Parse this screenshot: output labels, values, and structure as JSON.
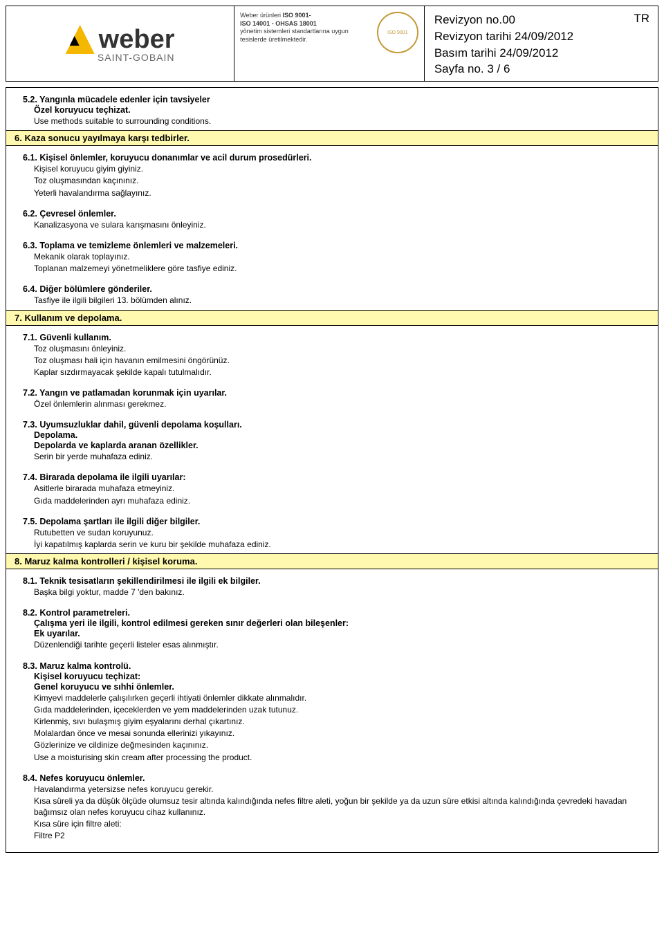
{
  "header": {
    "brand": "weber",
    "subbrand": "SAINT-GOBAIN",
    "iso_line1": "Weber ürünleri ",
    "iso_bold1": "ISO 9001-",
    "iso_bold2": "ISO 14001 - OHSAS 18001",
    "iso_line3": "yönetim sistemleri standartlarına uygun tesislerde üretilmektedir.",
    "badge_text": "ISO 9001",
    "tr": "TR",
    "rev_no": "Revizyon no.00",
    "rev_date": "Revizyon tarihi 24/09/2012",
    "print_date": "Basım tarihi 24/09/2012",
    "page": "Sayfa no. 3 / 6"
  },
  "s52": {
    "title": "5.2. Yangınla mücadele edenler için tavsiyeler",
    "sub": "Özel koruyucu teçhizat.",
    "l1": "Use methods suitable to surrounding conditions."
  },
  "h6": "6. Kaza sonucu yayılmaya karşı tedbirler.",
  "s61": {
    "title": "6.1. Kişisel önlemler, koruyucu donanımlar ve acil durum prosedürleri.",
    "l1": "Kişisel koruyucu giyim giyiniz.",
    "l2": "Toz oluşmasından kaçınınız.",
    "l3": "Yeterli havalandırma sağlayınız."
  },
  "s62": {
    "title": "6.2. Çevresel önlemler.",
    "l1": "Kanalizasyona ve sulara karışmasını önleyiniz."
  },
  "s63": {
    "title": "6.3. Toplama ve temizleme önlemleri ve malzemeleri.",
    "l1": "Mekanik olarak toplayınız.",
    "l2": "Toplanan malzemeyi yönetmeliklere göre tasfiye ediniz."
  },
  "s64": {
    "title": "6.4. Diğer bölümlere gönderiler.",
    "l1": "Tasfiye ile ilgili bilgileri 13. bölümden alınız."
  },
  "h7": "7. Kullanım ve depolama.",
  "s71": {
    "title": "7.1. Güvenli kullanım.",
    "l1": "Toz oluşmasını önleyiniz.",
    "l2": "Toz oluşması hali için havanın emilmesini öngörünüz.",
    "l3": "Kaplar sızdırmayacak şekilde kapalı tutulmalıdır."
  },
  "s72": {
    "title": "7.2. Yangın ve patlamadan korunmak için uyarılar.",
    "l1": "Özel önlemlerin alınması gerekmez."
  },
  "s73": {
    "title": "7.3. Uyumsuzluklar dahil, güvenli depolama koşulları.",
    "sub1": "Depolama.",
    "sub2": "Depolarda ve kaplarda aranan özellikler.",
    "l1": "Serin bir yerde muhafaza ediniz."
  },
  "s74": {
    "title": "7.4. Birarada depolama ile ilgili uyarılar:",
    "l1": "Asitlerle birarada muhafaza etmeyiniz.",
    "l2": "Gıda maddelerinden ayrı muhafaza ediniz."
  },
  "s75": {
    "title": "7.5. Depolama şartları ile ilgili diğer bilgiler.",
    "l1": "Rutubetten ve sudan koruyunuz.",
    "l2": "İyi kapatılmış kaplarda serin ve kuru bir şekilde muhafaza ediniz."
  },
  "h8": "8. Maruz kalma kontrolleri / kişisel koruma.",
  "s81": {
    "title": "8.1. Teknik tesisatların şekillendirilmesi ile ilgili ek bilgiler.",
    "l1": "Başka bilgi yoktur, madde 7 'den bakınız."
  },
  "s82": {
    "title": "8.2. Kontrol parametreleri.",
    "sub1": "Çalışma yeri ile ilgili, kontrol edilmesi gereken sınır değerleri olan bileşenler:",
    "sub2": "Ek uyarılar.",
    "l1": "Düzenlendiği tarihte geçerli listeler esas alınmıştır."
  },
  "s83": {
    "title": "8.3. Maruz kalma kontrolü.",
    "sub1": "Kişisel koruyucu teçhizat:",
    "sub2": "Genel koruyucu ve sıhhi önlemler.",
    "l1": "Kimyevi maddelerle çalışılırken geçerli ihtiyati önlemler dikkate alınmalıdır.",
    "l2": "Gıda maddelerinden, içeceklerden ve yem maddelerinden uzak tutunuz.",
    "l3": "Kirlenmiş, sıvı bulaşmış giyim eşyalarını derhal çıkartınız.",
    "l4": "Molalardan önce ve mesai sonunda ellerinizi yıkayınız.",
    "l5": "Gözlerinize ve cildinize değmesinden kaçınınız.",
    "l6": "Use a moisturising skin cream after processing the product."
  },
  "s84": {
    "title": "8.4. Nefes koruyucu önlemler.",
    "l1": "Havalandırma yetersizse nefes koruyucu gerekir.",
    "l2": "Kısa süreli ya da düşük ölçüde olumsuz tesir altında kalındığında nefes filtre aleti, yoğun bir şekilde ya da uzun süre etkisi altında kalındığında çevredeki havadan bağımsız olan nefes koruyucu cihaz kullanınız.",
    "l3": "Kısa süre için filtre aleti:",
    "l4": "Filtre P2"
  }
}
